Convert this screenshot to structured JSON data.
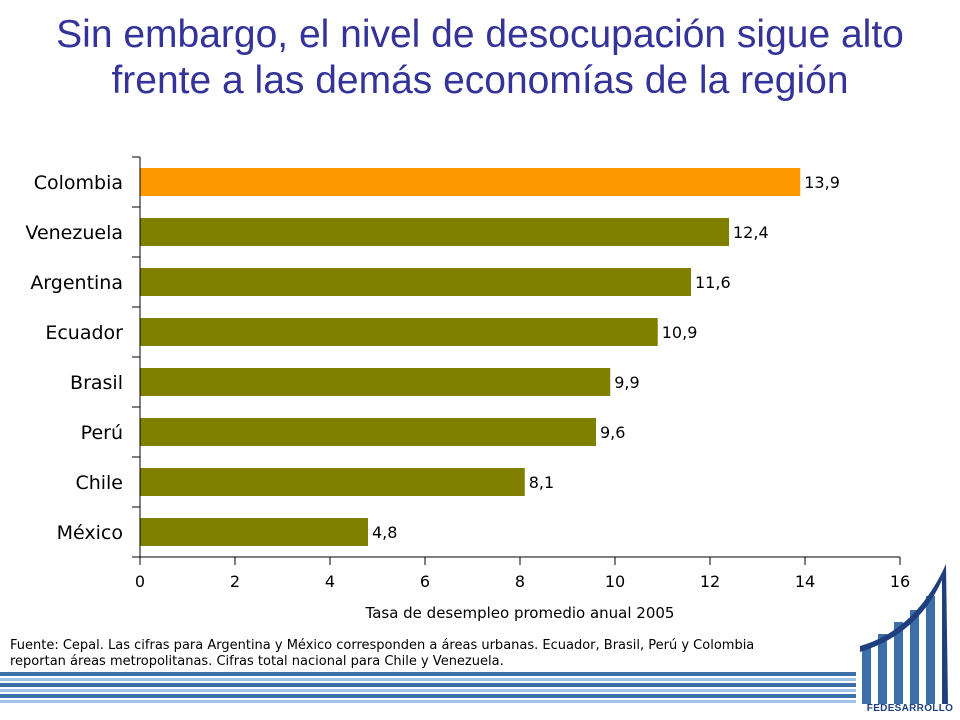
{
  "title": {
    "line1": "Sin embargo, el nivel de desocupación sigue alto",
    "line2": "frente a las demás economías de la región"
  },
  "source_note": {
    "line1": "Fuente: Cepal. Las cifras para Argentina y México corresponden a áreas urbanas. Ecuador, Brasil, Perú y Colombia",
    "line2": "reportan áreas metropolitanas. Cifras total nacional para Chile y Venezuela."
  },
  "logo": {
    "text": "FEDESARROLLO"
  },
  "colors": {
    "title": "#333399",
    "highlight_bar": "#ff9900",
    "bar": "#808000",
    "stripe_dark": "#3b6fa6",
    "stripe_light": "#9ec3e6"
  },
  "chart_data": {
    "type": "bar",
    "orientation": "horizontal",
    "title": "",
    "xlabel": "Tasa de desempleo promedio anual 2005",
    "ylabel": "",
    "xlim": [
      0,
      16
    ],
    "x_ticks": [
      0,
      2,
      4,
      6,
      8,
      10,
      12,
      14,
      16
    ],
    "grid": false,
    "categories": [
      "Colombia",
      "Venezuela",
      "Argentina",
      "Ecuador",
      "Brasil",
      "Perú",
      "Chile",
      "México"
    ],
    "values": [
      13.9,
      12.4,
      11.6,
      10.9,
      9.9,
      9.6,
      8.1,
      4.8
    ],
    "value_labels": [
      "13,9",
      "12,4",
      "11,6",
      "10,9",
      "9,9",
      "9,6",
      "8,1",
      "4,8"
    ],
    "highlight": "Colombia"
  }
}
